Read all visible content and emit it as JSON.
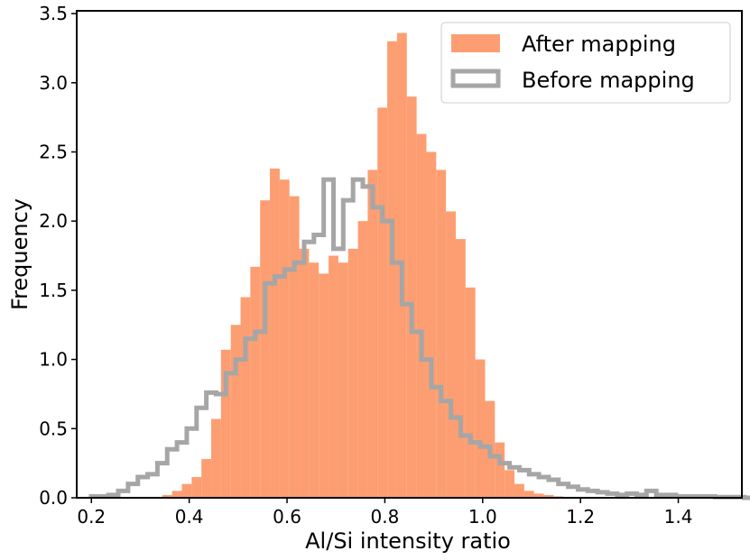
{
  "chart_data": {
    "type": "histogram",
    "xlabel": "Al/Si intensity ratio",
    "ylabel": "Frequency",
    "xlim": [
      0.17,
      1.53
    ],
    "ylim": [
      0,
      3.52
    ],
    "xticks": [
      0.2,
      0.4,
      0.6,
      0.8,
      1.0,
      1.2,
      1.4
    ],
    "xtick_labels": [
      "0.2",
      "0.4",
      "0.6",
      "0.8",
      "1.0",
      "1.2",
      "1.4"
    ],
    "yticks": [
      0.0,
      0.5,
      1.0,
      1.5,
      2.0,
      2.5,
      3.0,
      3.5
    ],
    "ytick_labels": [
      "0.0",
      "0.5",
      "1.0",
      "1.5",
      "2.0",
      "2.5",
      "3.0",
      "3.5"
    ],
    "grid": false,
    "legend_position": "top-right",
    "series": [
      {
        "name": "After mapping",
        "style": "filled",
        "color": "#FC8D59",
        "opacity": 0.85,
        "bin_start": 0.345,
        "bin_width": 0.02,
        "values": [
          0.02,
          0.05,
          0.1,
          0.15,
          0.28,
          0.57,
          1.07,
          1.25,
          1.45,
          1.67,
          2.15,
          2.38,
          2.3,
          2.18,
          1.8,
          1.7,
          1.62,
          1.75,
          1.7,
          1.8,
          2.0,
          2.37,
          2.82,
          3.3,
          3.36,
          2.9,
          2.63,
          2.5,
          2.37,
          2.07,
          1.87,
          1.52,
          1.0,
          0.7,
          0.4,
          0.2,
          0.1,
          0.05,
          0.03,
          0.02,
          0.01,
          0.005,
          0.002
        ]
      },
      {
        "name": "Before mapping",
        "style": "step",
        "color": "#A6A6A6",
        "bin_start": 0.195,
        "bin_width": 0.02,
        "values": [
          0.01,
          0.01,
          0.02,
          0.05,
          0.1,
          0.15,
          0.17,
          0.25,
          0.35,
          0.4,
          0.5,
          0.65,
          0.76,
          0.75,
          0.9,
          1.0,
          1.15,
          1.2,
          1.55,
          1.6,
          1.65,
          1.7,
          1.85,
          1.9,
          2.3,
          1.8,
          2.15,
          2.3,
          2.25,
          2.1,
          2.0,
          1.7,
          1.4,
          1.2,
          1.0,
          0.8,
          0.7,
          0.58,
          0.45,
          0.4,
          0.37,
          0.3,
          0.25,
          0.22,
          0.2,
          0.17,
          0.15,
          0.13,
          0.1,
          0.08,
          0.06,
          0.05,
          0.04,
          0.03,
          0.02,
          0.03,
          0.02,
          0.05,
          0.02,
          0.02,
          0.01,
          0.01,
          0.01,
          0.01,
          0.005,
          0.005,
          0.005,
          0.0
        ]
      }
    ]
  }
}
